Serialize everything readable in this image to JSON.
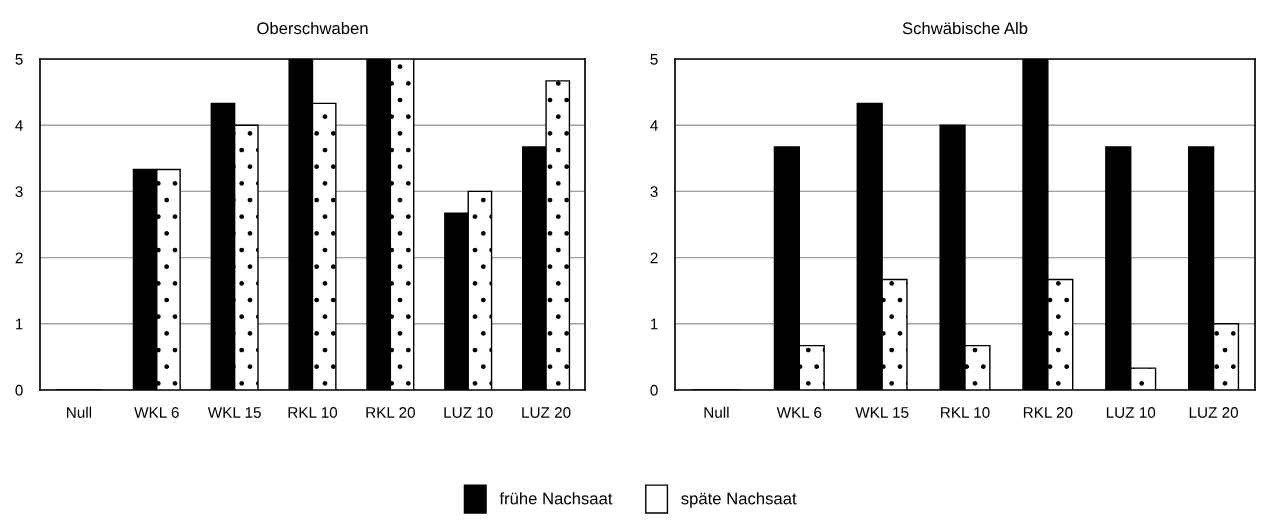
{
  "chart_data": [
    {
      "type": "bar",
      "title": "Oberschwaben",
      "categories": [
        "Null",
        "WKL 6",
        "WKL 15",
        "RKL 10",
        "RKL 20",
        "LUZ 10",
        "LUZ 20"
      ],
      "series": [
        {
          "name": "frühe Nachsaat",
          "color": "#000000",
          "values": [
            0,
            3.33,
            4.33,
            5,
            5,
            2.67,
            3.67
          ]
        },
        {
          "name": "späte Nachsaat",
          "color": "#ffffff",
          "values": [
            0,
            3.33,
            4,
            4.33,
            5,
            3,
            4.67
          ]
        }
      ],
      "ylim": [
        0,
        5
      ],
      "yticks": [
        0,
        1,
        2,
        3,
        4,
        5
      ],
      "grid": "y",
      "legend": "bottom"
    },
    {
      "type": "bar",
      "title": "Schwäbische Alb",
      "categories": [
        "Null",
        "WKL 6",
        "WKL 15",
        "RKL 10",
        "RKL 20",
        "LUZ 10",
        "LUZ 20"
      ],
      "series": [
        {
          "name": "frühe Nachsaat",
          "color": "#000000",
          "values": [
            0,
            3.67,
            4.33,
            4,
            5,
            3.67,
            3.67
          ]
        },
        {
          "name": "späte Nachsaat",
          "color": "#ffffff",
          "values": [
            0,
            0.67,
            1.67,
            0.67,
            1.67,
            0.33,
            1
          ]
        }
      ],
      "ylim": [
        0,
        5
      ],
      "yticks": [
        0,
        1,
        2,
        3,
        4,
        5
      ],
      "grid": "y"
    }
  ]
}
